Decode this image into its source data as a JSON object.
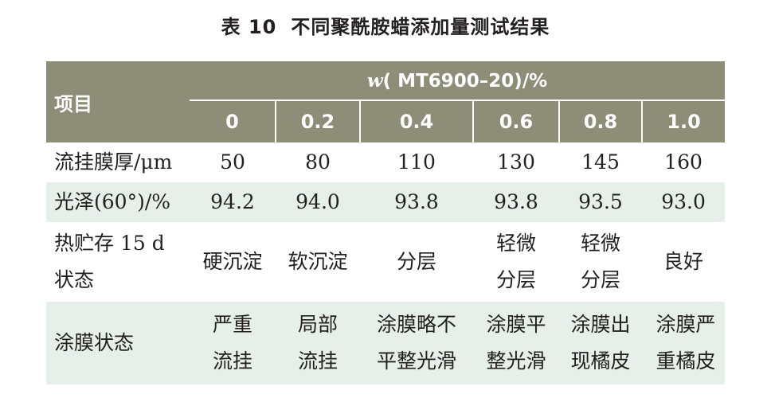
{
  "caption": {
    "number": "表 10",
    "title": "不同聚酰胺蜡添加量测试结果"
  },
  "table": {
    "item_header": "项目",
    "group_var": "w",
    "group_label": "( MT6900–20)/%",
    "levels": [
      "0",
      "0.2",
      "0.4",
      "0.6",
      "0.8",
      "1.0"
    ],
    "rows": [
      {
        "label": "流挂膜厚/μm",
        "values": [
          "50",
          "80",
          "110",
          "130",
          "145",
          "160"
        ]
      },
      {
        "label": "光泽(60°)/%",
        "values": [
          "94.2",
          "94.0",
          "93.8",
          "93.8",
          "93.5",
          "93.0"
        ]
      },
      {
        "label": "热贮存 15 d\n状态",
        "values": [
          "硬沉淀",
          "软沉淀",
          "分层",
          "轻微\n分层",
          "轻微\n分层",
          "良好"
        ]
      },
      {
        "label": "涂膜状态",
        "values": [
          "严重\n流挂",
          "局部\n流挂",
          "涂膜略不\n平整光滑",
          "涂膜平\n整光滑",
          "涂膜出\n现橘皮",
          "涂膜严\n重橘皮"
        ]
      }
    ]
  },
  "colors": {
    "header_bg": "#8e8d78",
    "shade_bg": "#e7efeb",
    "text": "#231f20"
  }
}
